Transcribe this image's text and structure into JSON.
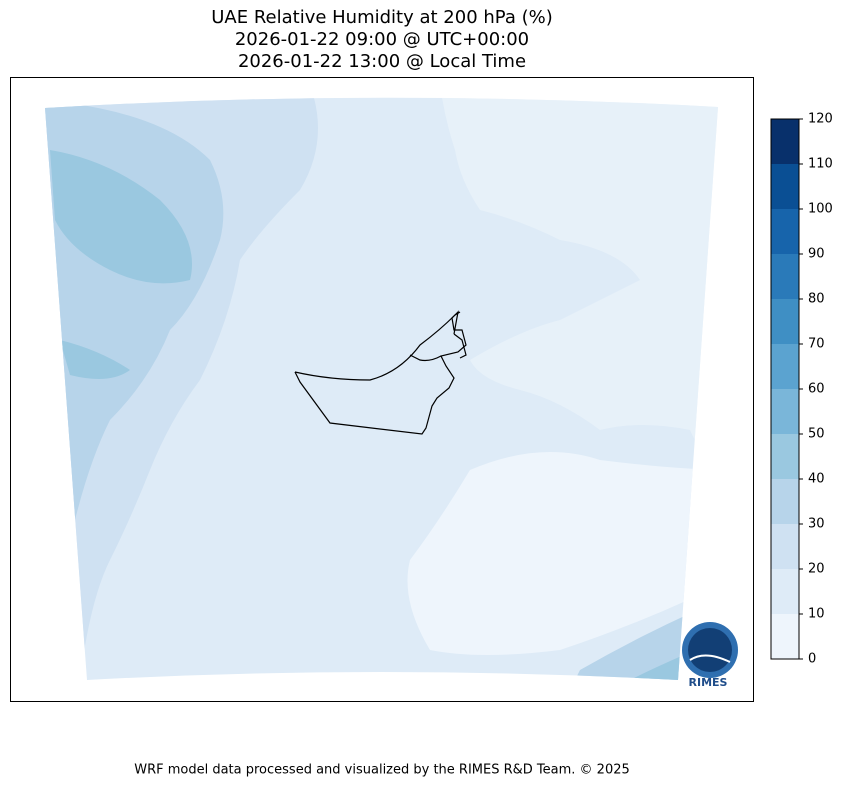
{
  "title": [
    "UAE Relative Humidity at 200 hPa (%)",
    "2026-01-22 09:00 @ UTC+00:00",
    "2026-01-22 13:00 @ Local Time"
  ],
  "colorbar": {
    "lim": [
      0,
      120
    ],
    "ticks": [
      0,
      10,
      20,
      30,
      40,
      50,
      60,
      70,
      80,
      90,
      100,
      110,
      120
    ],
    "colors": [
      "#eef5fc",
      "#deebf7",
      "#cfe1f2",
      "#b7d4ea",
      "#9ac8e0",
      "#7ab6d9",
      "#5ba3d0",
      "#3f8fc4",
      "#2a7ab9",
      "#1764ab",
      "#0a4f94",
      "#08306b"
    ]
  },
  "logo": "RIMES",
  "footer": "WRF model data processed and visualized by the RIMES R&D Team. © 2025"
}
